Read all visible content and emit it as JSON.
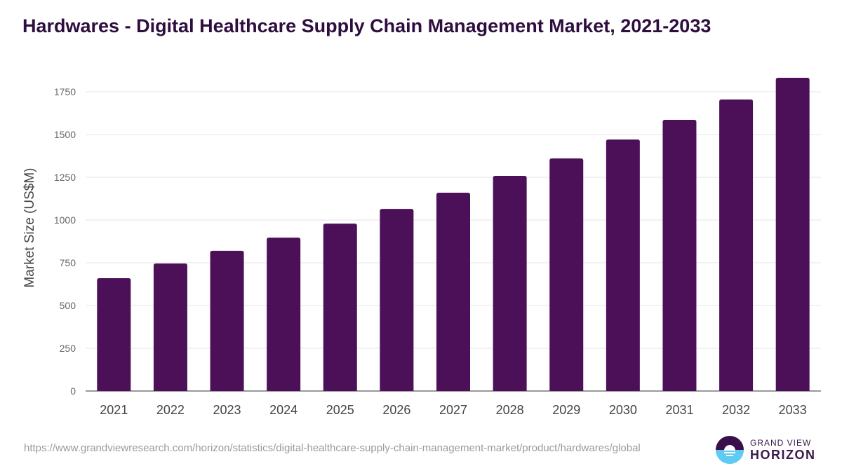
{
  "chart_data": {
    "type": "bar",
    "title": "Hardwares - Digital Healthcare Supply Chain Management Market, 2021-2033",
    "xlabel": "",
    "ylabel": "Market Size (US$M)",
    "categories": [
      "2021",
      "2022",
      "2023",
      "2024",
      "2025",
      "2026",
      "2027",
      "2028",
      "2029",
      "2030",
      "2031",
      "2032",
      "2033"
    ],
    "values": [
      660,
      746,
      820,
      897,
      979,
      1065,
      1160,
      1258,
      1360,
      1471,
      1586,
      1705,
      1832
    ],
    "ylim": [
      0,
      1750
    ],
    "yticks": [
      "0",
      "250",
      "500",
      "750",
      "1000",
      "1250",
      "1500",
      "1750"
    ],
    "grid": true,
    "bar_color": "#4b1058"
  },
  "source_url": "https://www.grandviewresearch.com/horizon/statistics/digital-healthcare-supply-chain-management-market/product/hardwares/global",
  "logo": {
    "line1": "GRAND VIEW",
    "line2": "HORIZON"
  }
}
